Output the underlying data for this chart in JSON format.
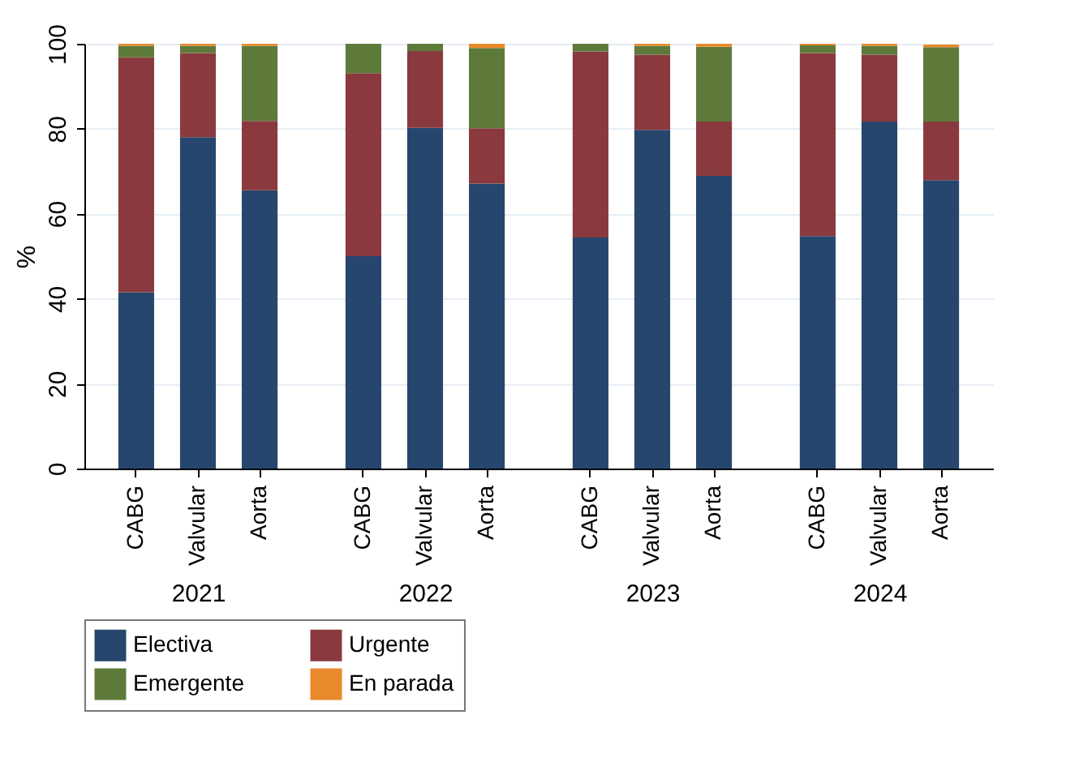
{
  "chart_data": [
    {
      "type": "bar",
      "stacked": true,
      "categories": [
        "CABG",
        "Valvular",
        "Aorta"
      ],
      "xlabel": "2021",
      "ylabel": "%",
      "ylim": [
        0,
        100
      ],
      "yticks": [
        0,
        20,
        40,
        60,
        80,
        100
      ],
      "grid": "y",
      "legend": "bottom",
      "series": [
        {
          "name": "Electiva",
          "color": "#26466d",
          "values": [
            41.5,
            78,
            65.5
          ]
        },
        {
          "name": "Urgente",
          "color": "#8a3a3f",
          "values": [
            55.3,
            19.8,
            16.3
          ]
        },
        {
          "name": "Emergente",
          "color": "#5e7a3a",
          "values": [
            2.7,
            1.7,
            17.7
          ]
        },
        {
          "name": "En parada",
          "color": "#e8892b",
          "values": [
            0.5,
            0.5,
            0.5
          ]
        }
      ]
    },
    {
      "type": "bar",
      "stacked": true,
      "categories": [
        "CABG",
        "Valvular",
        "Aorta"
      ],
      "xlabel": "2022",
      "ylim": [
        0,
        100
      ],
      "yticks": [
        0,
        20,
        40,
        60,
        80,
        100
      ],
      "grid": "y",
      "legend": "bottom",
      "tick_labels": "x",
      "series": [
        {
          "name": "Electiva",
          "color": "#26466d",
          "values": [
            50,
            80.2,
            67.1
          ]
        },
        {
          "name": "Urgente",
          "color": "#8a3a3f",
          "values": [
            43.1,
            18.1,
            13
          ]
        },
        {
          "name": "Emergente",
          "color": "#5e7a3a",
          "values": [
            6.9,
            1.7,
            18.9
          ]
        },
        {
          "name": "En parada",
          "color": "#e8892b",
          "values": [
            0,
            0,
            1
          ]
        }
      ]
    },
    {
      "type": "bar",
      "stacked": true,
      "categories": [
        "CABG",
        "Valvular",
        "Aorta"
      ],
      "xlabel": "2023",
      "ylim": [
        0,
        100
      ],
      "yticks": [
        0,
        20,
        40,
        60,
        80,
        100
      ],
      "grid": "y",
      "legend": "bottom",
      "tick_labels": "x",
      "series": [
        {
          "name": "Electiva",
          "color": "#26466d",
          "values": [
            54.4,
            79.7,
            68.9
          ]
        },
        {
          "name": "Urgente",
          "color": "#8a3a3f",
          "values": [
            43.8,
            17.7,
            12.8
          ]
        },
        {
          "name": "Emergente",
          "color": "#5e7a3a",
          "values": [
            1.8,
            2.1,
            17.6
          ]
        },
        {
          "name": "En parada",
          "color": "#e8892b",
          "values": [
            0,
            0.5,
            0.7
          ]
        }
      ]
    },
    {
      "type": "bar",
      "stacked": true,
      "categories": [
        "CABG",
        "Valvular",
        "Aorta"
      ],
      "xlabel": "2024",
      "ylim": [
        0,
        100
      ],
      "yticks": [
        0,
        20,
        40,
        60,
        80,
        100
      ],
      "grid": "y",
      "legend": "bottom",
      "tick_labels": "x",
      "series": [
        {
          "name": "Electiva",
          "color": "#26466d",
          "values": [
            54.7,
            81.7,
            67.9
          ]
        },
        {
          "name": "Urgente",
          "color": "#8a3a3f",
          "values": [
            43.1,
            15.7,
            13.8
          ]
        },
        {
          "name": "Emergente",
          "color": "#5e7a3a",
          "values": [
            1.8,
            2.1,
            17.5
          ]
        },
        {
          "name": "En parada",
          "color": "#e8892b",
          "values": [
            0.4,
            0.5,
            0.6
          ]
        }
      ]
    }
  ]
}
